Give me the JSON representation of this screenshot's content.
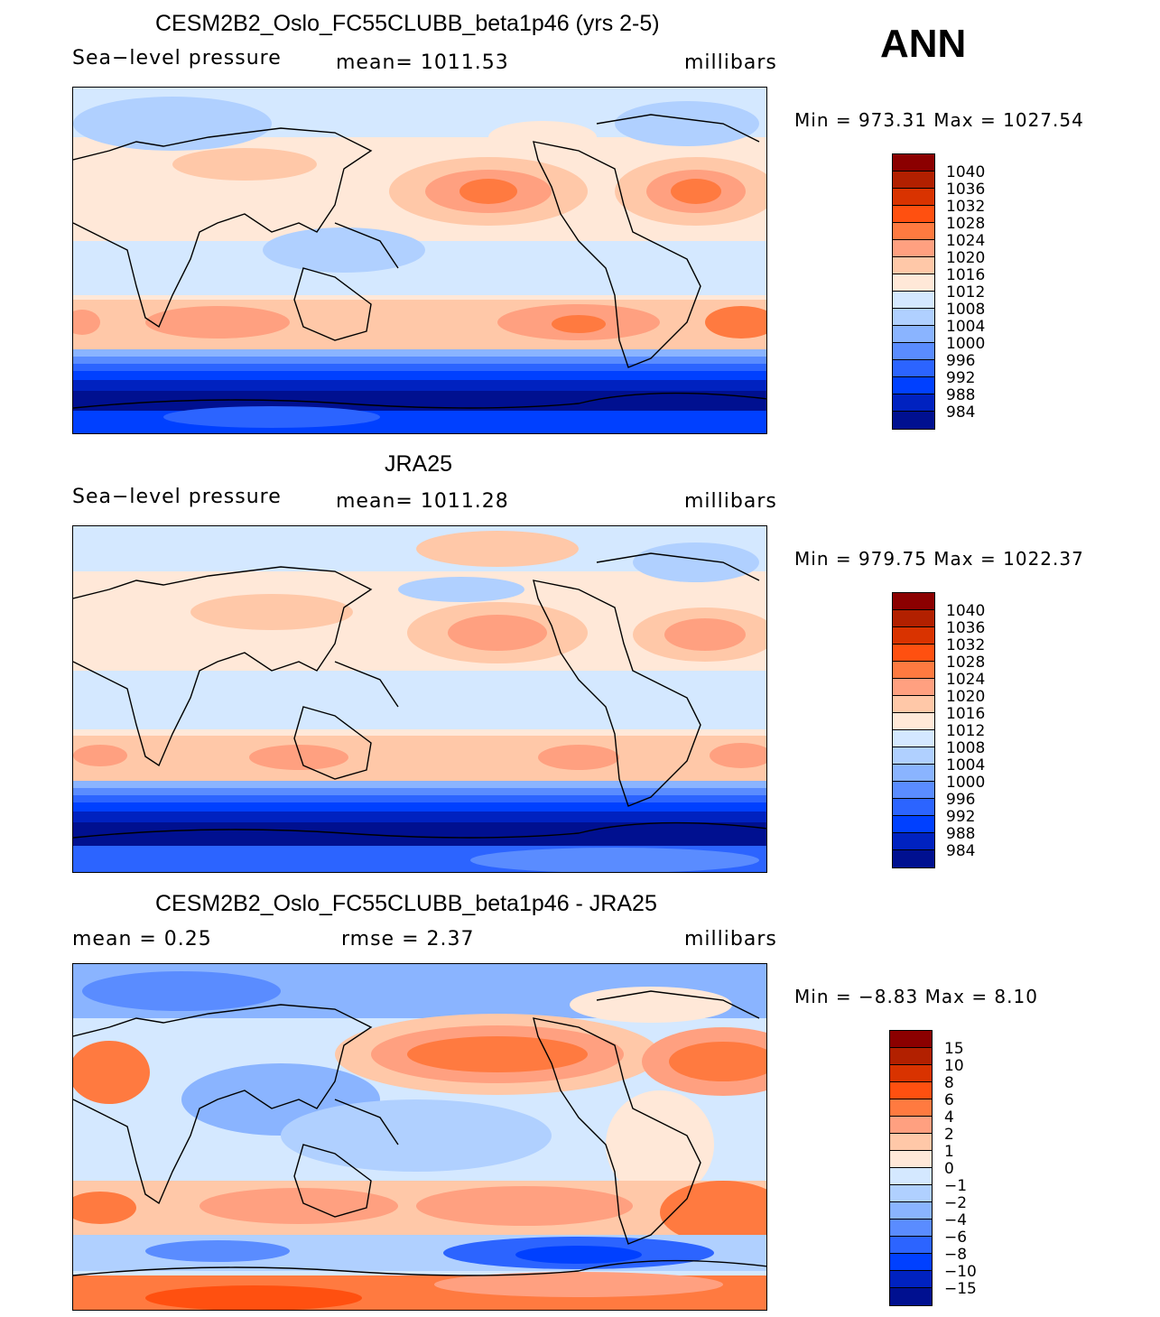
{
  "season": "ANN",
  "panels": [
    {
      "title": "CESM2B2_Oslo_FC55CLUBB_beta1p46 (yrs 2-5)",
      "left_label": "Sea−level  pressure",
      "center_label": "mean=  1011.53",
      "units": "millibars",
      "minmax": "Min  =  973.31  Max  =  1027.54",
      "colorbar_id": "abs"
    },
    {
      "title": "JRA25",
      "left_label": "Sea−level  pressure",
      "center_label": "mean=  1011.28",
      "units": "millibars",
      "minmax": "Min  =  979.75  Max  =  1022.37",
      "colorbar_id": "abs"
    },
    {
      "title": "CESM2B2_Oslo_FC55CLUBB_beta1p46 - JRA25",
      "left_label": "mean  =      0.25",
      "center_label": "rmse  =      2.37",
      "units": "millibars",
      "minmax": "Min  =     −8.83  Max  =       8.10",
      "colorbar_id": "diff"
    }
  ],
  "colorbars": {
    "abs": {
      "colors": [
        "#8b0000",
        "#b22000",
        "#d93300",
        "#ff5010",
        "#ff7a40",
        "#ffa080",
        "#ffc8a8",
        "#ffe8d8",
        "#d4e8ff",
        "#b0d0ff",
        "#8ab4ff",
        "#5a8cff",
        "#2c64ff",
        "#0040ff",
        "#0022c0",
        "#001090"
      ],
      "labels": [
        "1040",
        "1036",
        "1032",
        "1028",
        "1024",
        "1020",
        "1016",
        "1012",
        "1008",
        "1004",
        "1000",
        "996",
        "992",
        "988",
        "984"
      ]
    },
    "diff": {
      "colors": [
        "#8b0000",
        "#b22000",
        "#d93300",
        "#ff5010",
        "#ff7a40",
        "#ffa080",
        "#ffc8a8",
        "#ffe8d8",
        "#d4e8ff",
        "#b0d0ff",
        "#8ab4ff",
        "#5a8cff",
        "#2c64ff",
        "#0040ff",
        "#0022c0",
        "#001090"
      ],
      "labels": [
        "15",
        "10",
        "8",
        "6",
        "4",
        "2",
        "1",
        "0",
        "−1",
        "−2",
        "−4",
        "−6",
        "−8",
        "−10",
        "−15"
      ]
    }
  }
}
